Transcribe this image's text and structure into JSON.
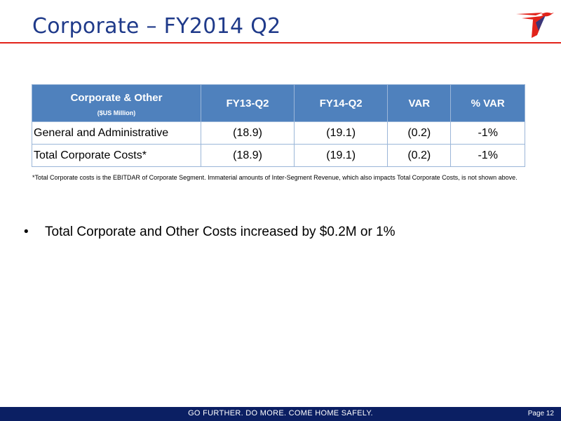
{
  "slide": {
    "title": "Corporate – FY2014 Q2",
    "logo_icon": "hummingbird-logo-icon"
  },
  "table": {
    "header": {
      "label_main": "Corporate & Other",
      "label_sub": "($US Million)",
      "columns": [
        "FY13-Q2",
        "FY14-Q2",
        "VAR",
        "% VAR"
      ]
    },
    "rows": [
      {
        "label": "General and Administrative",
        "values": [
          "(18.9)",
          "(19.1)",
          "(0.2)",
          "-1%"
        ]
      },
      {
        "label": "Total Corporate Costs*",
        "values": [
          "(18.9)",
          "(19.1)",
          "(0.2)",
          "-1%"
        ]
      }
    ]
  },
  "footnote": "*Total Corporate costs is the EBITDAR of Corporate Segment. Immaterial amounts of Inter-Segment Revenue, which also impacts Total Corporate Costs, is not shown above.",
  "bullets": [
    {
      "marker": "•",
      "text": "Total Corporate and Other Costs increased by $0.2M or 1%"
    }
  ],
  "footer": {
    "slogan": "GO FURTHER. DO MORE. COME HOME SAFELY.",
    "page": "Page 12"
  },
  "colors": {
    "title": "#1f3a8a",
    "accent_red": "#e2231a",
    "table_header": "#4f81bd",
    "footer_bg": "#0b1f63"
  }
}
